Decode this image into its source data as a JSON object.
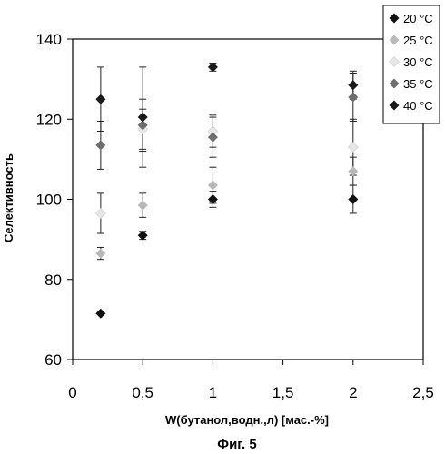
{
  "chart_data": {
    "type": "scatter",
    "title": "",
    "xlabel": "W(бутанол,водн.,л) [мас.-%]",
    "ylabel": "Селективность",
    "caption": "Фиг. 5",
    "xlim": [
      0,
      2.5
    ],
    "ylim": [
      60,
      140
    ],
    "x_ticks": [
      "0",
      "0,5",
      "1",
      "1,5",
      "2",
      "2,5"
    ],
    "x_tick_values": [
      0,
      0.5,
      1,
      1.5,
      2,
      2.5
    ],
    "y_ticks": [
      "60",
      "80",
      "100",
      "120",
      "140"
    ],
    "y_tick_values": [
      60,
      80,
      100,
      120,
      140
    ],
    "grid": false,
    "legend_position": "top-right",
    "series": [
      {
        "name": "20 °C",
        "color": "#111111",
        "marker": "diamond",
        "points": [
          {
            "x": 0.2,
            "y": 71.5
          },
          {
            "x": 0.5,
            "y": 91
          },
          {
            "x": 1,
            "y": 100
          },
          {
            "x": 2,
            "y": 100
          }
        ],
        "errors": [
          0,
          1,
          2,
          3.5
        ]
      },
      {
        "name": "25 °C",
        "color": "#b8b8b8",
        "marker": "diamond",
        "points": [
          {
            "x": 0.2,
            "y": 86.5
          },
          {
            "x": 0.5,
            "y": 98.5
          },
          {
            "x": 1,
            "y": 103.5
          },
          {
            "x": 2,
            "y": 107
          }
        ],
        "errors": [
          1.5,
          3,
          4.5,
          3.5
        ]
      },
      {
        "name": "30 °C",
        "color": "#e6e6e6",
        "marker": "diamond",
        "points": [
          {
            "x": 0.2,
            "y": 96.5
          },
          {
            "x": 0.5,
            "y": 117.5
          },
          {
            "x": 1,
            "y": 117
          },
          {
            "x": 2,
            "y": 113
          }
        ],
        "errors": [
          5,
          5,
          4,
          7
        ]
      },
      {
        "name": "35 °C",
        "color": "#6e6e6e",
        "marker": "diamond",
        "points": [
          {
            "x": 0.2,
            "y": 113.5
          },
          {
            "x": 0.5,
            "y": 118.5
          },
          {
            "x": 1,
            "y": 115.5
          },
          {
            "x": 2,
            "y": 125.5
          }
        ],
        "errors": [
          6,
          6.5,
          5,
          6
        ]
      },
      {
        "name": "40 °C",
        "color": "#1a1a1a",
        "marker": "diamond",
        "points": [
          {
            "x": 0.2,
            "y": 125
          },
          {
            "x": 0.5,
            "y": 120.5
          },
          {
            "x": 1,
            "y": 133
          },
          {
            "x": 2,
            "y": 128.5
          }
        ],
        "errors": [
          8,
          12.5,
          1,
          3.5
        ]
      }
    ]
  }
}
